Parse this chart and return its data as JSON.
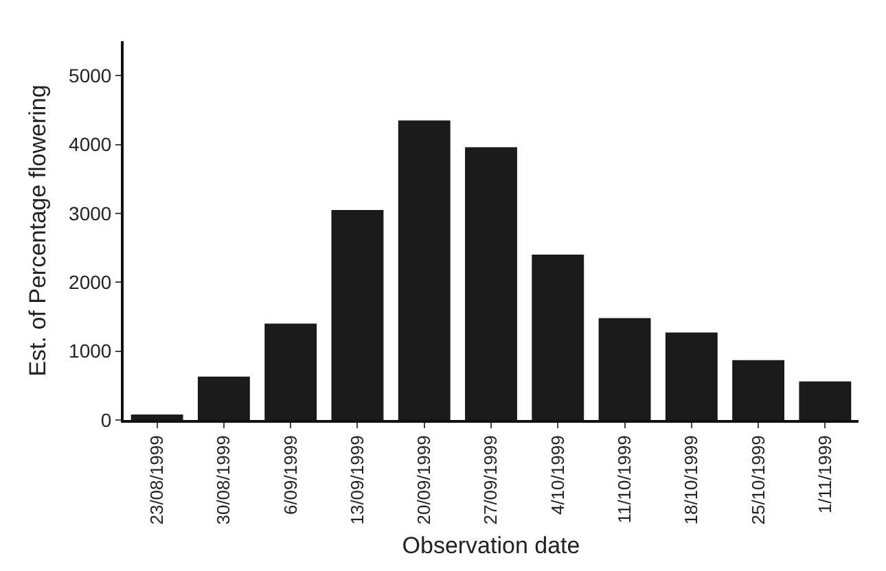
{
  "chart_data": {
    "type": "bar",
    "xlabel": "Observation date",
    "ylabel": "Est. of Percentage flowering",
    "categories": [
      "23/08/1999",
      "30/08/1999",
      "6/09/1999",
      "13/09/1999",
      "20/09/1999",
      "27/09/1999",
      "4/10/1999",
      "11/10/1999",
      "18/10/1999",
      "25/10/1999",
      "1/11/1999"
    ],
    "values": [
      80,
      630,
      1400,
      3050,
      4350,
      3960,
      2400,
      1480,
      1270,
      870,
      560
    ],
    "color": "#1a1a1a",
    "ylim": [
      0,
      5500
    ],
    "yticks": [
      0,
      1000,
      2000,
      3000,
      4000,
      5000
    ],
    "grid": false
  }
}
